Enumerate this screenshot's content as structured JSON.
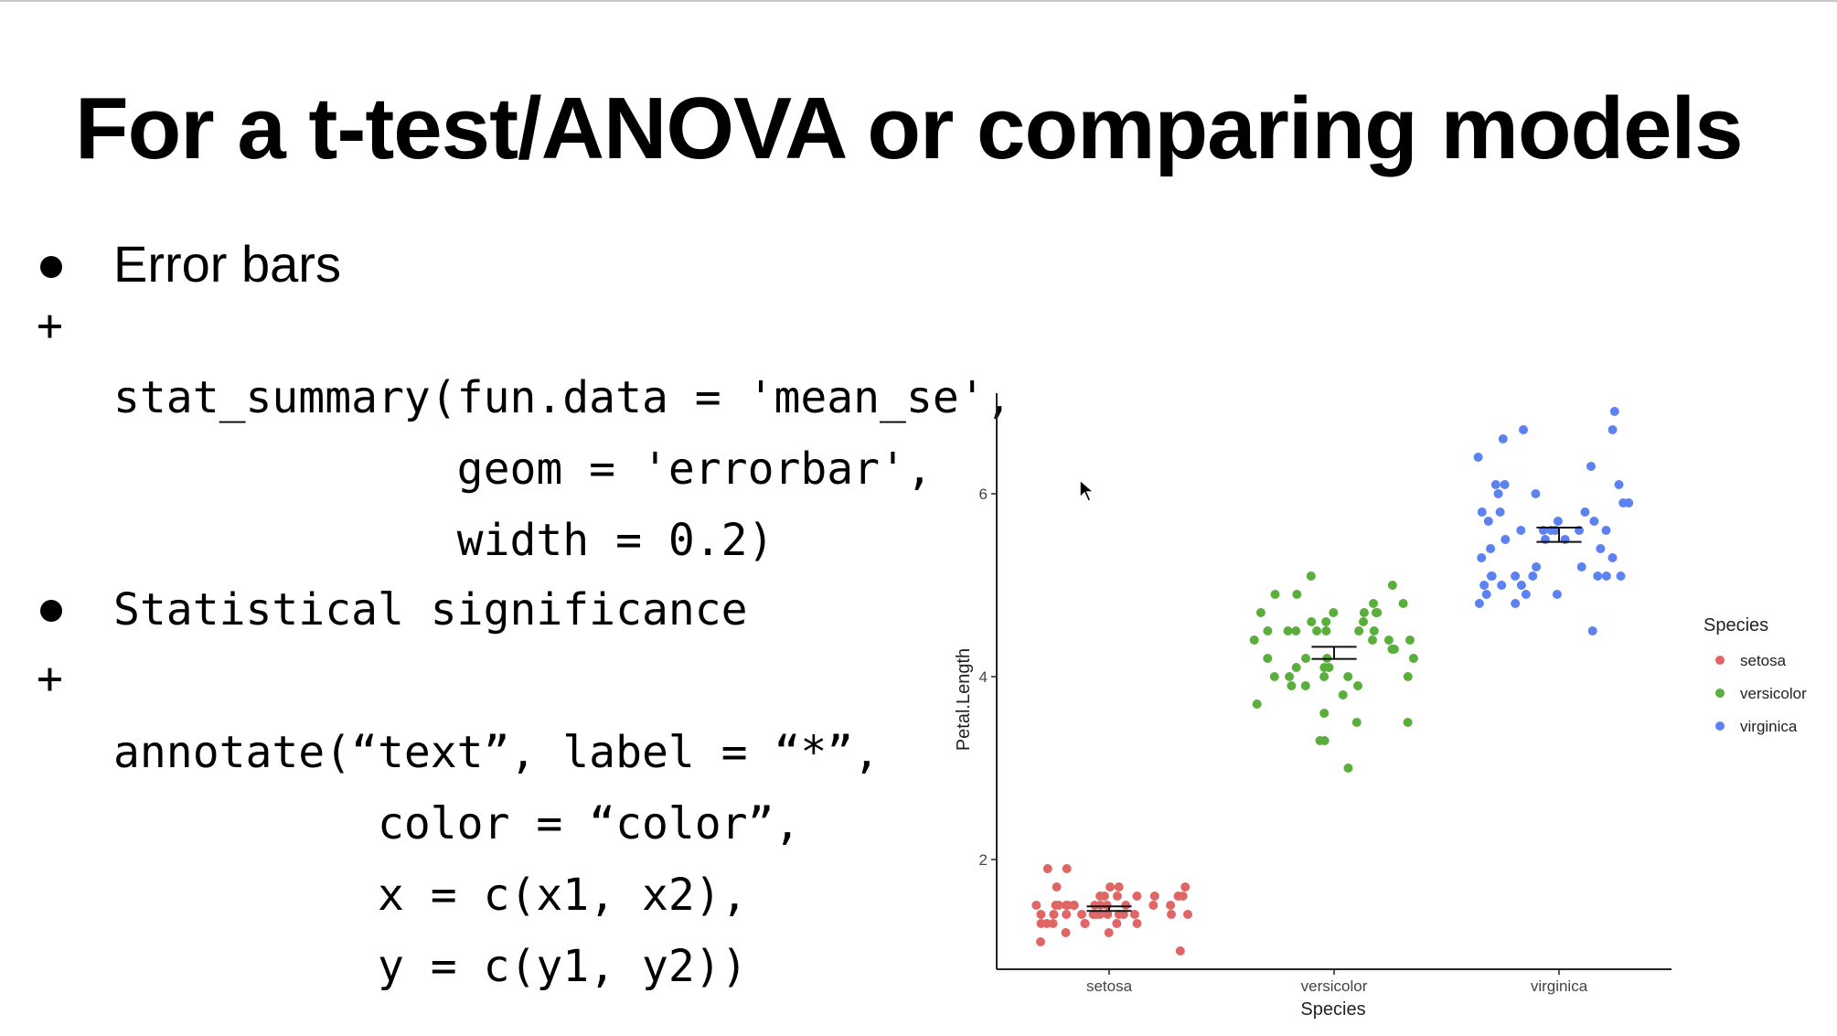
{
  "slide": {
    "title": "For a t-test/ANOVA or comparing models",
    "bullet1": {
      "label": "Error bars",
      "code": [
        "stat_summary(fun.data = 'mean_se',",
        "             geom = 'errorbar',",
        "             width = 0.2)"
      ]
    },
    "bullet2": {
      "label": "Statistical significance",
      "code": [
        "annotate(“text”, label = “*”,",
        "          color = “color”,",
        "          x = c(x1, x2),",
        "          y = c(y1, y2))"
      ]
    },
    "plus_symbol": "+"
  },
  "chart_data": {
    "type": "scatter",
    "xlabel": "Species",
    "ylabel": "Petal.Length",
    "categories": [
      "setosa",
      "versicolor",
      "virginica"
    ],
    "ylim": [
      0.8,
      7.1
    ],
    "yticks": [
      2,
      4,
      6
    ],
    "legend": {
      "title": "Species",
      "placement": "right"
    },
    "series": [
      {
        "name": "setosa",
        "color": "#e06666",
        "mean": 1.462,
        "se": 0.025,
        "values": [
          1.4,
          1.4,
          1.3,
          1.5,
          1.4,
          1.7,
          1.4,
          1.5,
          1.4,
          1.5,
          1.5,
          1.6,
          1.4,
          1.1,
          1.2,
          1.5,
          1.3,
          1.4,
          1.7,
          1.5,
          1.7,
          1.5,
          1.0,
          1.7,
          1.9,
          1.6,
          1.6,
          1.5,
          1.4,
          1.6,
          1.6,
          1.5,
          1.5,
          1.4,
          1.5,
          1.2,
          1.3,
          1.4,
          1.3,
          1.5,
          1.3,
          1.3,
          1.3,
          1.6,
          1.9,
          1.4,
          1.6,
          1.4,
          1.5,
          1.4
        ]
      },
      {
        "name": "versicolor",
        "color": "#5aae3c",
        "mean": 4.26,
        "se": 0.066,
        "values": [
          4.7,
          4.5,
          4.9,
          4.0,
          4.6,
          4.5,
          4.7,
          3.3,
          4.6,
          3.9,
          3.5,
          4.2,
          4.0,
          4.7,
          3.6,
          4.4,
          4.5,
          4.1,
          4.5,
          3.9,
          4.8,
          4.0,
          4.9,
          4.7,
          4.3,
          4.4,
          4.8,
          5.0,
          4.5,
          3.5,
          3.8,
          3.7,
          3.9,
          5.1,
          4.5,
          4.5,
          4.7,
          4.4,
          4.1,
          4.0,
          4.4,
          4.6,
          4.0,
          3.3,
          4.2,
          4.2,
          4.2,
          4.3,
          3.0,
          4.1
        ]
      },
      {
        "name": "virginica",
        "color": "#5b82f0",
        "mean": 5.552,
        "se": 0.078,
        "values": [
          6.0,
          5.1,
          5.9,
          5.6,
          5.8,
          6.6,
          4.5,
          6.3,
          5.8,
          6.1,
          5.1,
          5.3,
          5.5,
          5.0,
          5.1,
          5.3,
          5.5,
          6.7,
          6.9,
          5.0,
          5.7,
          4.9,
          6.7,
          4.9,
          5.7,
          6.0,
          4.8,
          4.9,
          5.6,
          5.8,
          6.1,
          6.4,
          5.6,
          5.1,
          5.6,
          6.1,
          5.6,
          5.5,
          4.8,
          5.4,
          5.6,
          5.1,
          5.1,
          5.9,
          5.7,
          5.2,
          5.0,
          5.2,
          5.4,
          5.1
        ]
      }
    ]
  }
}
